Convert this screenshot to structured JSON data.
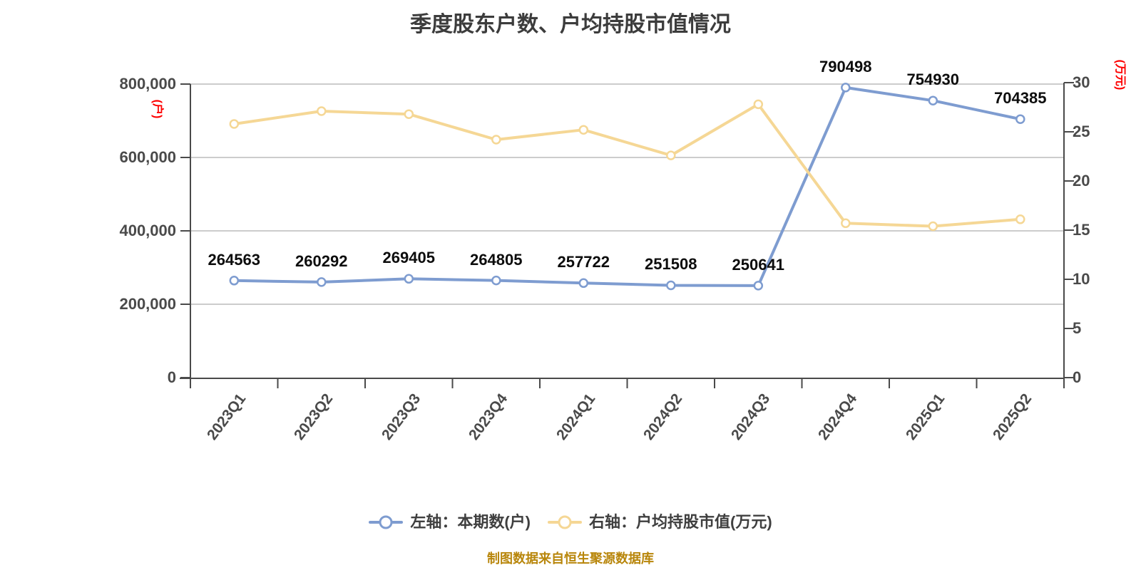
{
  "title": "季度股东户数、户均持股市值情况",
  "caption": "制图数据来自恒生聚源数据库",
  "left_axis": {
    "name": "(户)",
    "ticks": [
      "800,000",
      "600,000",
      "400,000",
      "200,000",
      "0"
    ],
    "name_color": "#fe0000"
  },
  "right_axis": {
    "name": "(万元)",
    "ticks": [
      "30",
      "25",
      "20",
      "15",
      "10",
      "5",
      "0"
    ],
    "name_color": "#fe0000"
  },
  "legend": [
    {
      "label": "左轴：本期数(户)",
      "color": "#7e9cd0"
    },
    {
      "label": "右轴：户均持股市值(万元)",
      "color": "#f5d795"
    }
  ],
  "colors": {
    "blue_series": "#7e9cd0",
    "yellow_series": "#f5d795",
    "marker_fill": "#ffffff",
    "grid": "#cccccc",
    "axis": "#4a4a4a",
    "data_label": "#0d0d0d",
    "caption": "#b8860b"
  },
  "chart_data": {
    "type": "line",
    "categories": [
      "2023Q1",
      "2023Q2",
      "2023Q3",
      "2023Q4",
      "2024Q1",
      "2024Q2",
      "2024Q3",
      "2024Q4",
      "2025Q1",
      "2025Q2"
    ],
    "series": [
      {
        "name": "左轴：本期数(户)",
        "axis": "left",
        "color": "#7e9cd0",
        "values": [
          264563,
          260292,
          269405,
          264805,
          257722,
          251508,
          250641,
          790498,
          754930,
          704385
        ],
        "show_labels": true
      },
      {
        "name": "右轴：户均持股市值(万元)",
        "axis": "right",
        "color": "#f5d795",
        "values": [
          25.8,
          27.1,
          26.8,
          24.2,
          25.2,
          22.6,
          27.8,
          15.7,
          15.4,
          16.1
        ],
        "show_labels": false
      }
    ],
    "ylabel_left": "(户)",
    "ylabel_right": "(万元)",
    "ylim_left": [
      0,
      800000
    ],
    "ylim_right": [
      0,
      30
    ],
    "grid": true,
    "legend_position": "bottom"
  }
}
